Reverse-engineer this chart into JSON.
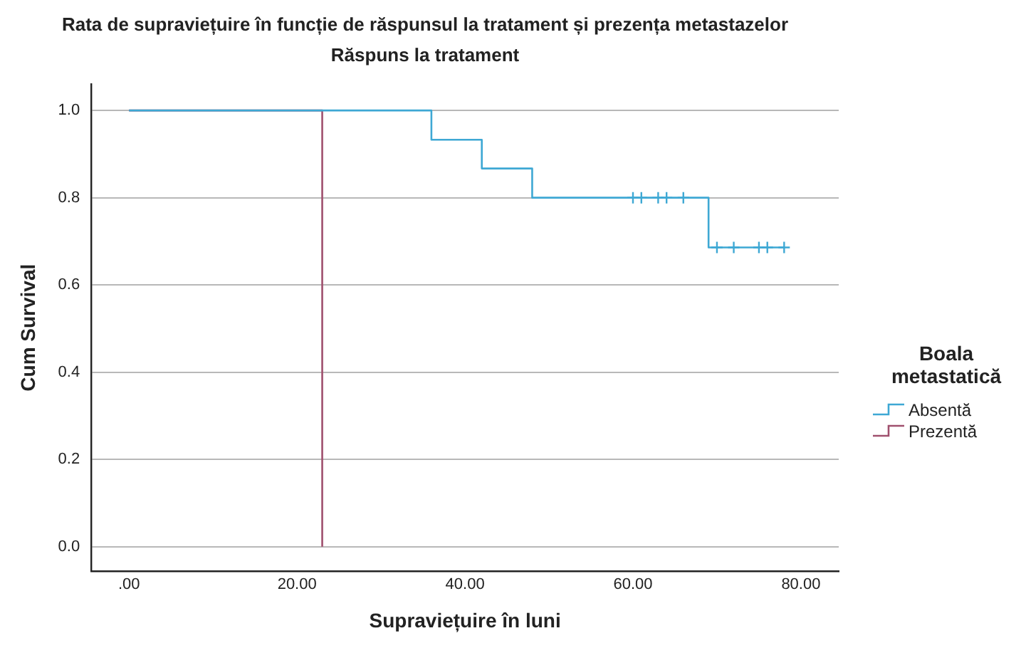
{
  "chart_data": {
    "type": "step",
    "title": "Rata de supraviețuire în funcție de răspunsul la tratament și prezența metastazelor",
    "subtitle": "Răspuns la tratament",
    "xlabel": "Supraviețuire în luni",
    "ylabel": "Cum Survival",
    "legend_title": "Boala metastatică",
    "legend": "right",
    "grid": "y",
    "line_style": "solid",
    "xlim": [
      -4.5,
      84.5
    ],
    "xticks": [
      {
        "value": 0,
        "label": ".00"
      },
      {
        "value": 20,
        "label": "20.00"
      },
      {
        "value": 40,
        "label": "40.00"
      },
      {
        "value": 60,
        "label": "60.00"
      },
      {
        "value": 80,
        "label": "80.00"
      }
    ],
    "ylim": [
      -0.056,
      1.06
    ],
    "yticks": [
      {
        "value": 0,
        "label": "0.0"
      },
      {
        "value": 0.2,
        "label": "0.2"
      },
      {
        "value": 0.4,
        "label": "0.4"
      },
      {
        "value": 0.6,
        "label": "0.6"
      },
      {
        "value": 0.8,
        "label": "0.8"
      },
      {
        "value": 1,
        "label": "1.0"
      }
    ],
    "series": [
      {
        "name": "Absentă",
        "color": "#3ea8d4",
        "x": [
          0,
          36,
          42,
          48,
          69,
          78
        ],
        "values": [
          1,
          0.933,
          0.867,
          0.8,
          0.686,
          0.686
        ]
      },
      {
        "name": "Prezentă",
        "color": "#a0506e",
        "x": [
          0,
          23,
          23
        ],
        "values": [
          1,
          1,
          0
        ]
      },
      {
        "type": "scatter",
        "marker": "cross",
        "color": "#3ea8d4",
        "x": [
          60,
          61,
          63,
          64,
          66,
          70,
          72,
          75,
          76,
          78
        ],
        "values": [
          0.8,
          0.8,
          0.8,
          0.8,
          0.8,
          0.686,
          0.686,
          0.686,
          0.686,
          0.686
        ]
      }
    ]
  }
}
